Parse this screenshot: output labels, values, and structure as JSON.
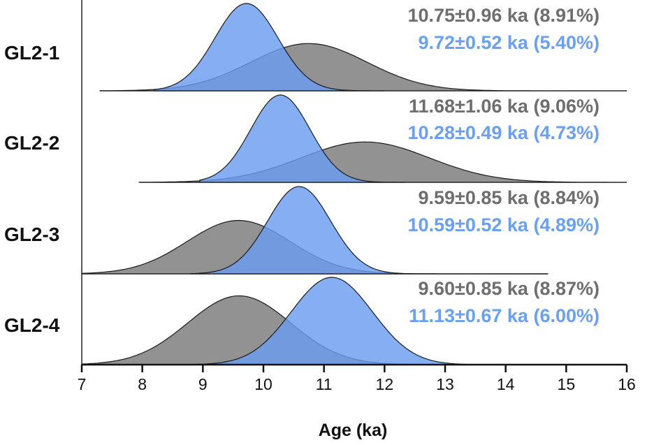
{
  "chart_data": {
    "type": "area",
    "title": "",
    "xlabel": "Age (ka)",
    "ylabel": "",
    "xlim": [
      7,
      16
    ],
    "xticks": [
      7,
      8,
      9,
      10,
      11,
      12,
      13,
      14,
      15,
      16
    ],
    "grid": false,
    "legend": "none",
    "colors": {
      "gray": "#7a7a7a",
      "blue": "#6a9cf0",
      "gray_text": "#6e6e6e",
      "blue_text": "#6aa0f2"
    },
    "rows": [
      {
        "name": "GL2-1",
        "gray": {
          "mean": 10.75,
          "sd": 0.96,
          "range": [
            7.3,
            16.0
          ],
          "label": "10.75±0.96 ka (8.91%)"
        },
        "blue": {
          "mean": 9.72,
          "sd": 0.52,
          "range": [
            8.2,
            12.0
          ],
          "label": "9.72±0.52 ka (5.40%)"
        }
      },
      {
        "name": "GL2-2",
        "gray": {
          "mean": 11.68,
          "sd": 1.06,
          "range": [
            7.95,
            16.0
          ],
          "label": "11.68±1.06 ka (9.06%)"
        },
        "blue": {
          "mean": 10.28,
          "sd": 0.49,
          "range": [
            8.95,
            12.35
          ],
          "label": "10.28±0.49 ka (4.73%)"
        }
      },
      {
        "name": "GL2-3",
        "gray": {
          "mean": 9.59,
          "sd": 0.85,
          "range": [
            7.0,
            14.7
          ],
          "label": "9.59±0.85 ka (8.84%)"
        },
        "blue": {
          "mean": 10.59,
          "sd": 0.52,
          "range": [
            8.8,
            14.7
          ],
          "label": "10.59±0.52 ka (4.89%)"
        }
      },
      {
        "name": "GL2-4",
        "gray": {
          "mean": 9.6,
          "sd": 0.85,
          "range": [
            7.0,
            14.0
          ],
          "label": "9.60±0.85 ka (8.87%)"
        },
        "blue": {
          "mean": 11.13,
          "sd": 0.67,
          "range": [
            7.0,
            14.0
          ],
          "label": "11.13±0.67 ka (6.00%)"
        }
      }
    ]
  }
}
